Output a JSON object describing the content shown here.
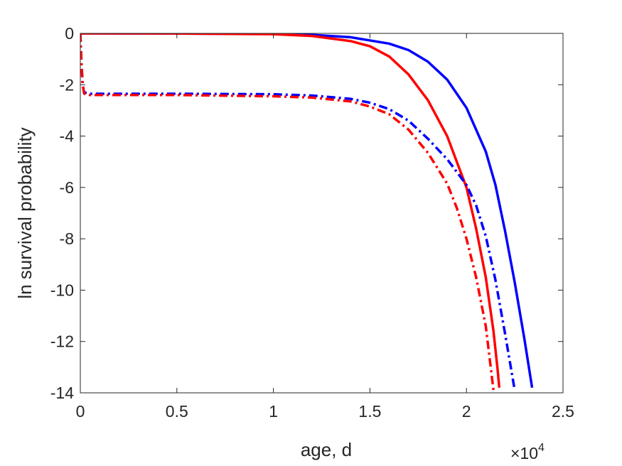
{
  "chart_data": {
    "type": "line",
    "title": "",
    "xlabel": "age, d",
    "ylabel": "ln survival probability",
    "x_multiplier_label": {
      "base": "×10",
      "exponent": "4"
    },
    "xlim": [
      0,
      2.5
    ],
    "ylim": [
      -14,
      0
    ],
    "x_ticks": [
      0,
      0.5,
      1,
      1.5,
      2,
      2.5
    ],
    "x_tick_labels": [
      "0",
      "0.5",
      "1",
      "1.5",
      "2",
      "2.5"
    ],
    "y_ticks": [
      0,
      -2,
      -4,
      -6,
      -8,
      -10,
      -12,
      -14
    ],
    "y_tick_labels": [
      "0",
      "-2",
      "-4",
      "-6",
      "-8",
      "-10",
      "-12",
      "-14"
    ],
    "grid": false,
    "legend": "none",
    "series": [
      {
        "color": "#0000ff",
        "line_style": "solid",
        "points": [
          [
            0,
            0
          ],
          [
            0.5,
            -0.005
          ],
          [
            1.0,
            -0.02
          ],
          [
            1.2,
            -0.06
          ],
          [
            1.4,
            -0.15
          ],
          [
            1.6,
            -0.4
          ],
          [
            1.7,
            -0.65
          ],
          [
            1.8,
            -1.1
          ],
          [
            1.9,
            -1.8
          ],
          [
            2.0,
            -2.9
          ],
          [
            2.1,
            -4.6
          ],
          [
            2.15,
            -5.9
          ],
          [
            2.2,
            -7.7
          ],
          [
            2.25,
            -9.7
          ],
          [
            2.3,
            -11.9
          ],
          [
            2.34,
            -13.8
          ]
        ]
      },
      {
        "color": "#ff0000",
        "line_style": "solid",
        "points": [
          [
            0,
            0
          ],
          [
            0.5,
            -0.005
          ],
          [
            1.0,
            -0.03
          ],
          [
            1.2,
            -0.1
          ],
          [
            1.4,
            -0.3
          ],
          [
            1.5,
            -0.5
          ],
          [
            1.6,
            -0.9
          ],
          [
            1.7,
            -1.6
          ],
          [
            1.8,
            -2.6
          ],
          [
            1.9,
            -4.0
          ],
          [
            1.95,
            -5.0
          ],
          [
            2.0,
            -6.0
          ],
          [
            2.05,
            -7.6
          ],
          [
            2.1,
            -9.5
          ],
          [
            2.14,
            -11.6
          ],
          [
            2.16,
            -13.0
          ],
          [
            2.17,
            -13.8
          ]
        ]
      },
      {
        "color": "#0000ff",
        "line_style": "dashdot",
        "points": [
          [
            0.0,
            0
          ],
          [
            0.005,
            -1.0
          ],
          [
            0.012,
            -2.0
          ],
          [
            0.02,
            -2.3
          ],
          [
            0.05,
            -2.35
          ],
          [
            0.5,
            -2.35
          ],
          [
            1.0,
            -2.37
          ],
          [
            1.2,
            -2.42
          ],
          [
            1.4,
            -2.55
          ],
          [
            1.5,
            -2.7
          ],
          [
            1.6,
            -2.95
          ],
          [
            1.7,
            -3.4
          ],
          [
            1.8,
            -4.1
          ],
          [
            1.9,
            -4.9
          ],
          [
            2.0,
            -5.9
          ],
          [
            2.05,
            -6.7
          ],
          [
            2.1,
            -7.9
          ],
          [
            2.15,
            -9.6
          ],
          [
            2.2,
            -11.7
          ],
          [
            2.25,
            -13.9
          ]
        ]
      },
      {
        "color": "#ff0000",
        "line_style": "dashdot",
        "points": [
          [
            0.0,
            0
          ],
          [
            0.005,
            -1.0
          ],
          [
            0.012,
            -2.0
          ],
          [
            0.02,
            -2.35
          ],
          [
            0.05,
            -2.4
          ],
          [
            0.5,
            -2.4
          ],
          [
            1.0,
            -2.45
          ],
          [
            1.2,
            -2.5
          ],
          [
            1.4,
            -2.65
          ],
          [
            1.5,
            -2.85
          ],
          [
            1.6,
            -3.15
          ],
          [
            1.7,
            -3.75
          ],
          [
            1.8,
            -4.65
          ],
          [
            1.9,
            -5.85
          ],
          [
            1.95,
            -6.8
          ],
          [
            2.0,
            -8.0
          ],
          [
            2.05,
            -9.5
          ],
          [
            2.1,
            -11.4
          ],
          [
            2.14,
            -13.9
          ]
        ]
      }
    ]
  }
}
